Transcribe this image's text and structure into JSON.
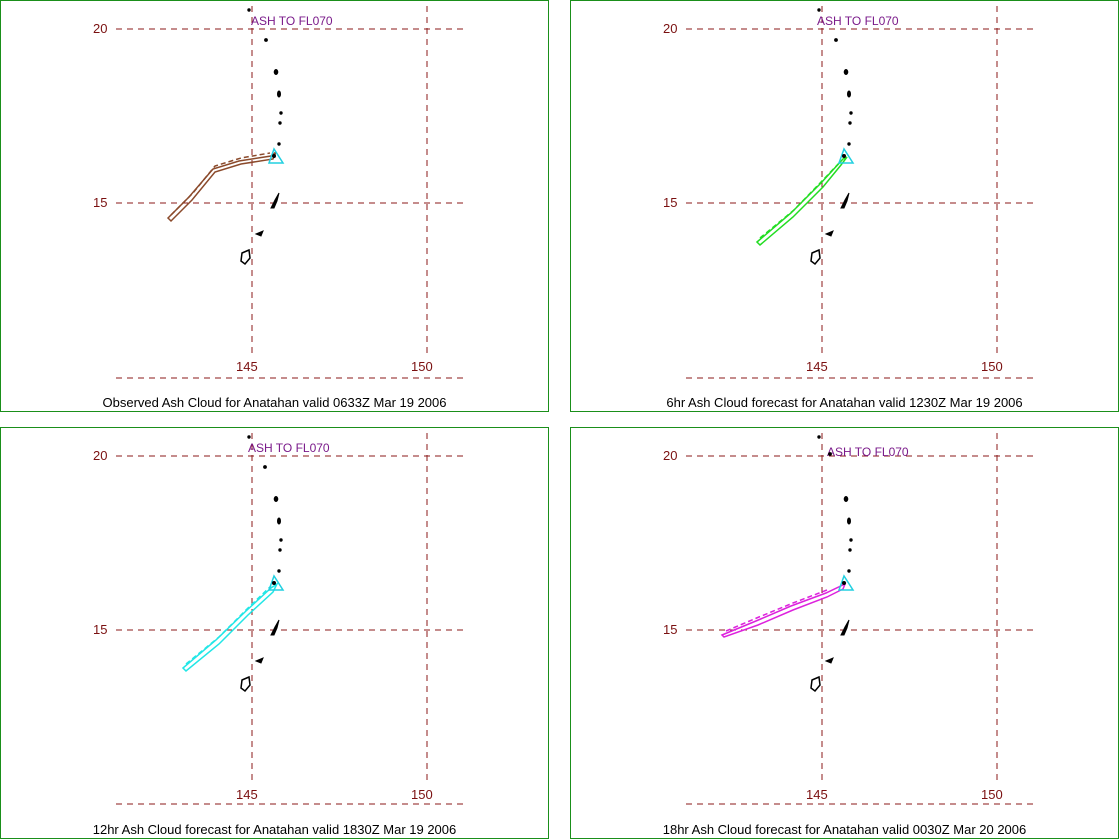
{
  "panels": [
    {
      "caption": "Observed Ash Cloud for Anatahan valid 0633Z Mar 19 2006",
      "ash_label": "ASH TO FL070",
      "lat_ticks": [
        "20",
        "15"
      ],
      "lon_ticks": [
        "145",
        "150"
      ],
      "cloud_color": "#8b4a2b"
    },
    {
      "caption": "6hr Ash Cloud forecast for Anatahan valid 1230Z Mar 19 2006",
      "ash_label": "ASH TO FL070",
      "lat_ticks": [
        "20",
        "15"
      ],
      "lon_ticks": [
        "145",
        "150"
      ],
      "cloud_color": "#22dd22"
    },
    {
      "caption": "12hr Ash Cloud forecast for Anatahan valid 1830Z Mar 19 2006",
      "ash_label": "ASH TO FL070",
      "lat_ticks": [
        "20",
        "15"
      ],
      "lon_ticks": [
        "145",
        "150"
      ],
      "cloud_color": "#22e6e6"
    },
    {
      "caption": "18hr Ash Cloud forecast for Anatahan valid 0030Z Mar 20 2006",
      "ash_label": "ASH TO FL070",
      "lat_ticks": [
        "20",
        "15"
      ],
      "lon_ticks": [
        "145",
        "150"
      ],
      "cloud_color": "#dd22dd"
    }
  ],
  "colors": {
    "grid": "#8b1a1a",
    "border": "#1a8f1a",
    "volcano_marker": "#22d0e0",
    "islands": "#000000"
  },
  "icons": {
    "volcano": "triangle-volcano-icon",
    "island": "island-outline-icon"
  }
}
